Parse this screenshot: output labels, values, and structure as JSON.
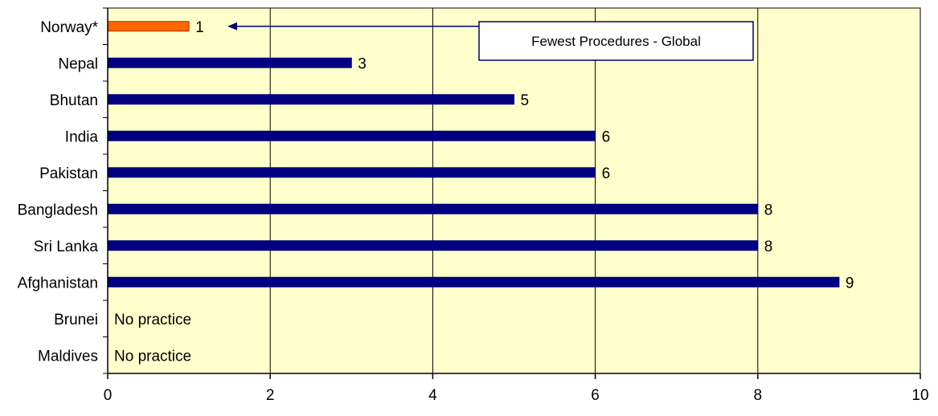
{
  "chart_data": {
    "type": "bar",
    "orientation": "horizontal",
    "categories": [
      "Norway*",
      "Nepal",
      "Bhutan",
      "India",
      "Pakistan",
      "Bangladesh",
      "Sri Lanka",
      "Afghanistan",
      "Brunei",
      "Maldives"
    ],
    "values": [
      1,
      3,
      5,
      6,
      6,
      8,
      8,
      9,
      null,
      null
    ],
    "value_labels": [
      "1",
      "3",
      "5",
      "6",
      "6",
      "8",
      "8",
      "9",
      "",
      ""
    ],
    "notes": [
      "",
      "",
      "",
      "",
      "",
      "",
      "",
      "",
      "No practice",
      "No practice"
    ],
    "highlight_index": 0,
    "xlim": [
      0,
      10
    ],
    "xticks": [
      0,
      2,
      4,
      6,
      8,
      10
    ],
    "xtick_labels": [
      "0",
      "2",
      "4",
      "6",
      "8",
      "10"
    ],
    "grid": "vertical",
    "title": "",
    "xlabel": "",
    "ylabel": "",
    "annotation": {
      "text": "Fewest Procedures - Global",
      "target_category": "Norway*"
    },
    "colors": {
      "plot_background": "#FFFFCC",
      "bar": "#000080",
      "highlight_bar": "#FF6600",
      "highlight_border": "#993300",
      "gridline": "#000000",
      "callout_border": "#000080",
      "arrow": "#000080"
    }
  }
}
